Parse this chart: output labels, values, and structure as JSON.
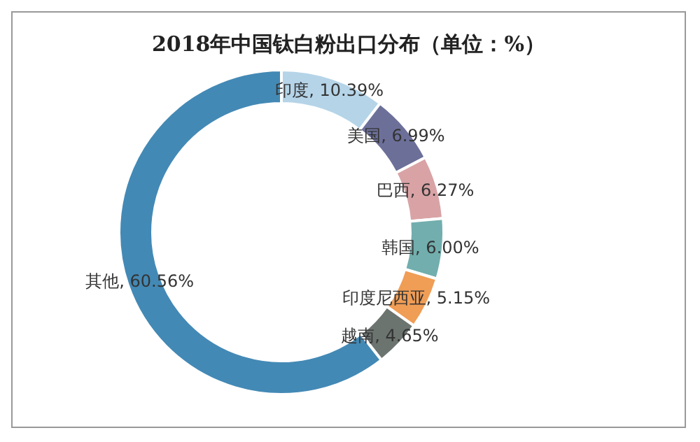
{
  "chart_data": {
    "type": "donut",
    "title": "2018年中国钛白粉出口分布（单位：%）",
    "categories": [
      "印度",
      "美国",
      "巴西",
      "韩国",
      "印度尼西亚",
      "越南",
      "其他"
    ],
    "values": [
      10.39,
      6.99,
      6.27,
      6.0,
      5.15,
      4.65,
      60.56
    ],
    "colors": [
      "#b5d4e8",
      "#6c7099",
      "#d9a3a6",
      "#72aeae",
      "#f09d55",
      "#6c7470",
      "#4389b5"
    ],
    "value_labels": [
      "10.39%",
      "6.99%",
      "6.27%",
      "6.00%",
      "5.15%",
      "4.65%",
      "60.56%"
    ],
    "legend": false
  }
}
